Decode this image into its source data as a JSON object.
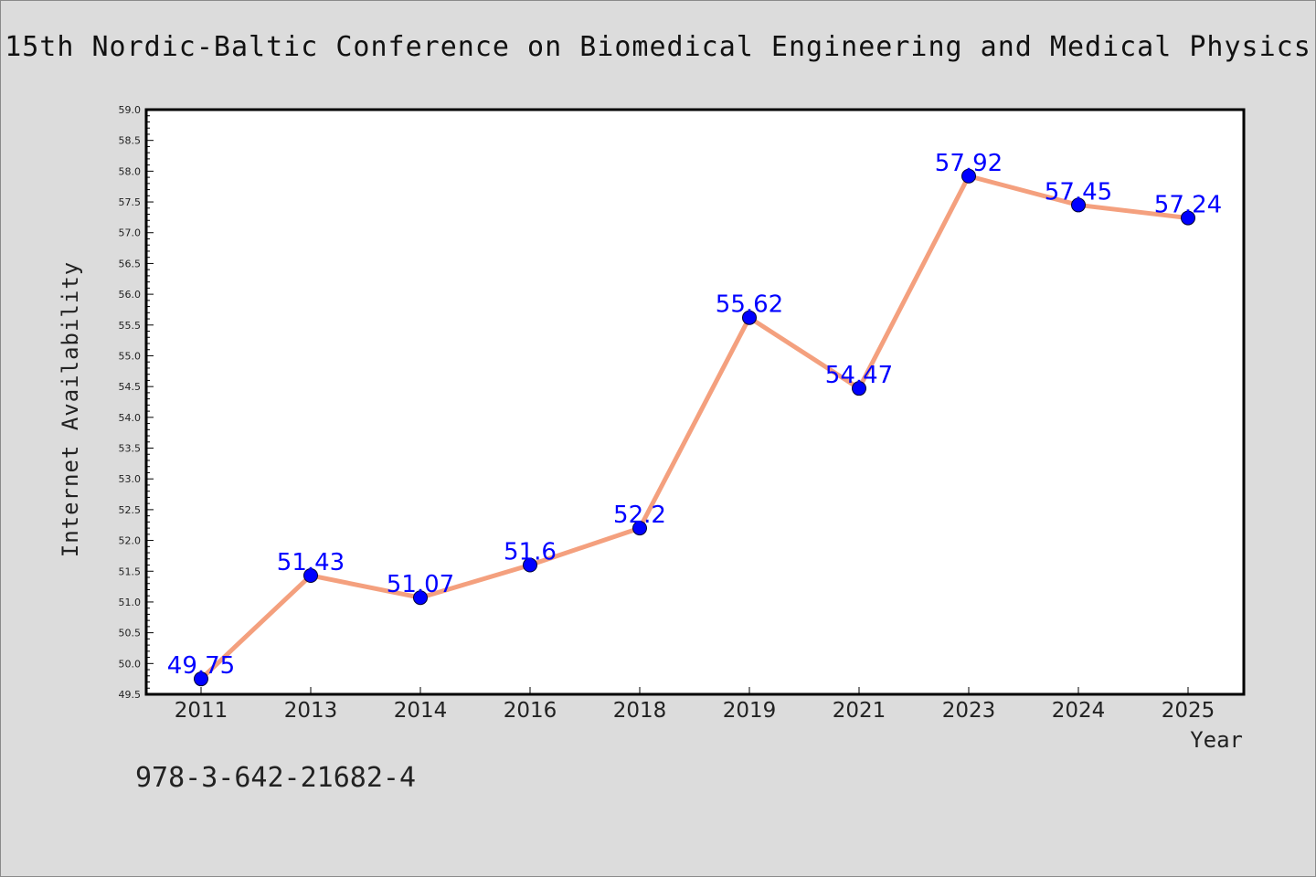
{
  "chart_data": {
    "type": "line",
    "title": "15th Nordic-Baltic Conference on Biomedical Engineering and Medical Physics",
    "xlabel": "Year",
    "ylabel": "Internet Availability",
    "categories": [
      "2011",
      "2013",
      "2014",
      "2016",
      "2018",
      "2019",
      "2021",
      "2023",
      "2024",
      "2025"
    ],
    "series": [
      {
        "values": [
          49.75,
          51.43,
          51.07,
          51.6,
          52.2,
          55.62,
          54.47,
          57.92,
          57.45,
          57.24
        ],
        "value_labels": [
          "49.75",
          "51.43",
          "51.07",
          "51.6",
          "52.2",
          "55.62",
          "54.47",
          "57.92",
          "57.45",
          "57.24"
        ],
        "line_color": "#f4a07e",
        "marker_color": "#0000ff",
        "label_color": "#0000ff"
      }
    ],
    "ylim": [
      49.5,
      59.0
    ],
    "yticks": [
      "49.5",
      "50.0",
      "50.5",
      "51.0",
      "51.5",
      "52.0",
      "52.5",
      "53.0",
      "53.5",
      "54.0",
      "54.5",
      "55.0",
      "55.5",
      "56.0",
      "56.5",
      "57.0",
      "57.5",
      "58.0",
      "58.5",
      "59.0"
    ],
    "grid": false,
    "legend": "none"
  },
  "footer_text": "978-3-642-21682-4",
  "colors": {
    "background": "#dcdcdc",
    "plot_background": "#ffffff",
    "axis": "#000000"
  }
}
